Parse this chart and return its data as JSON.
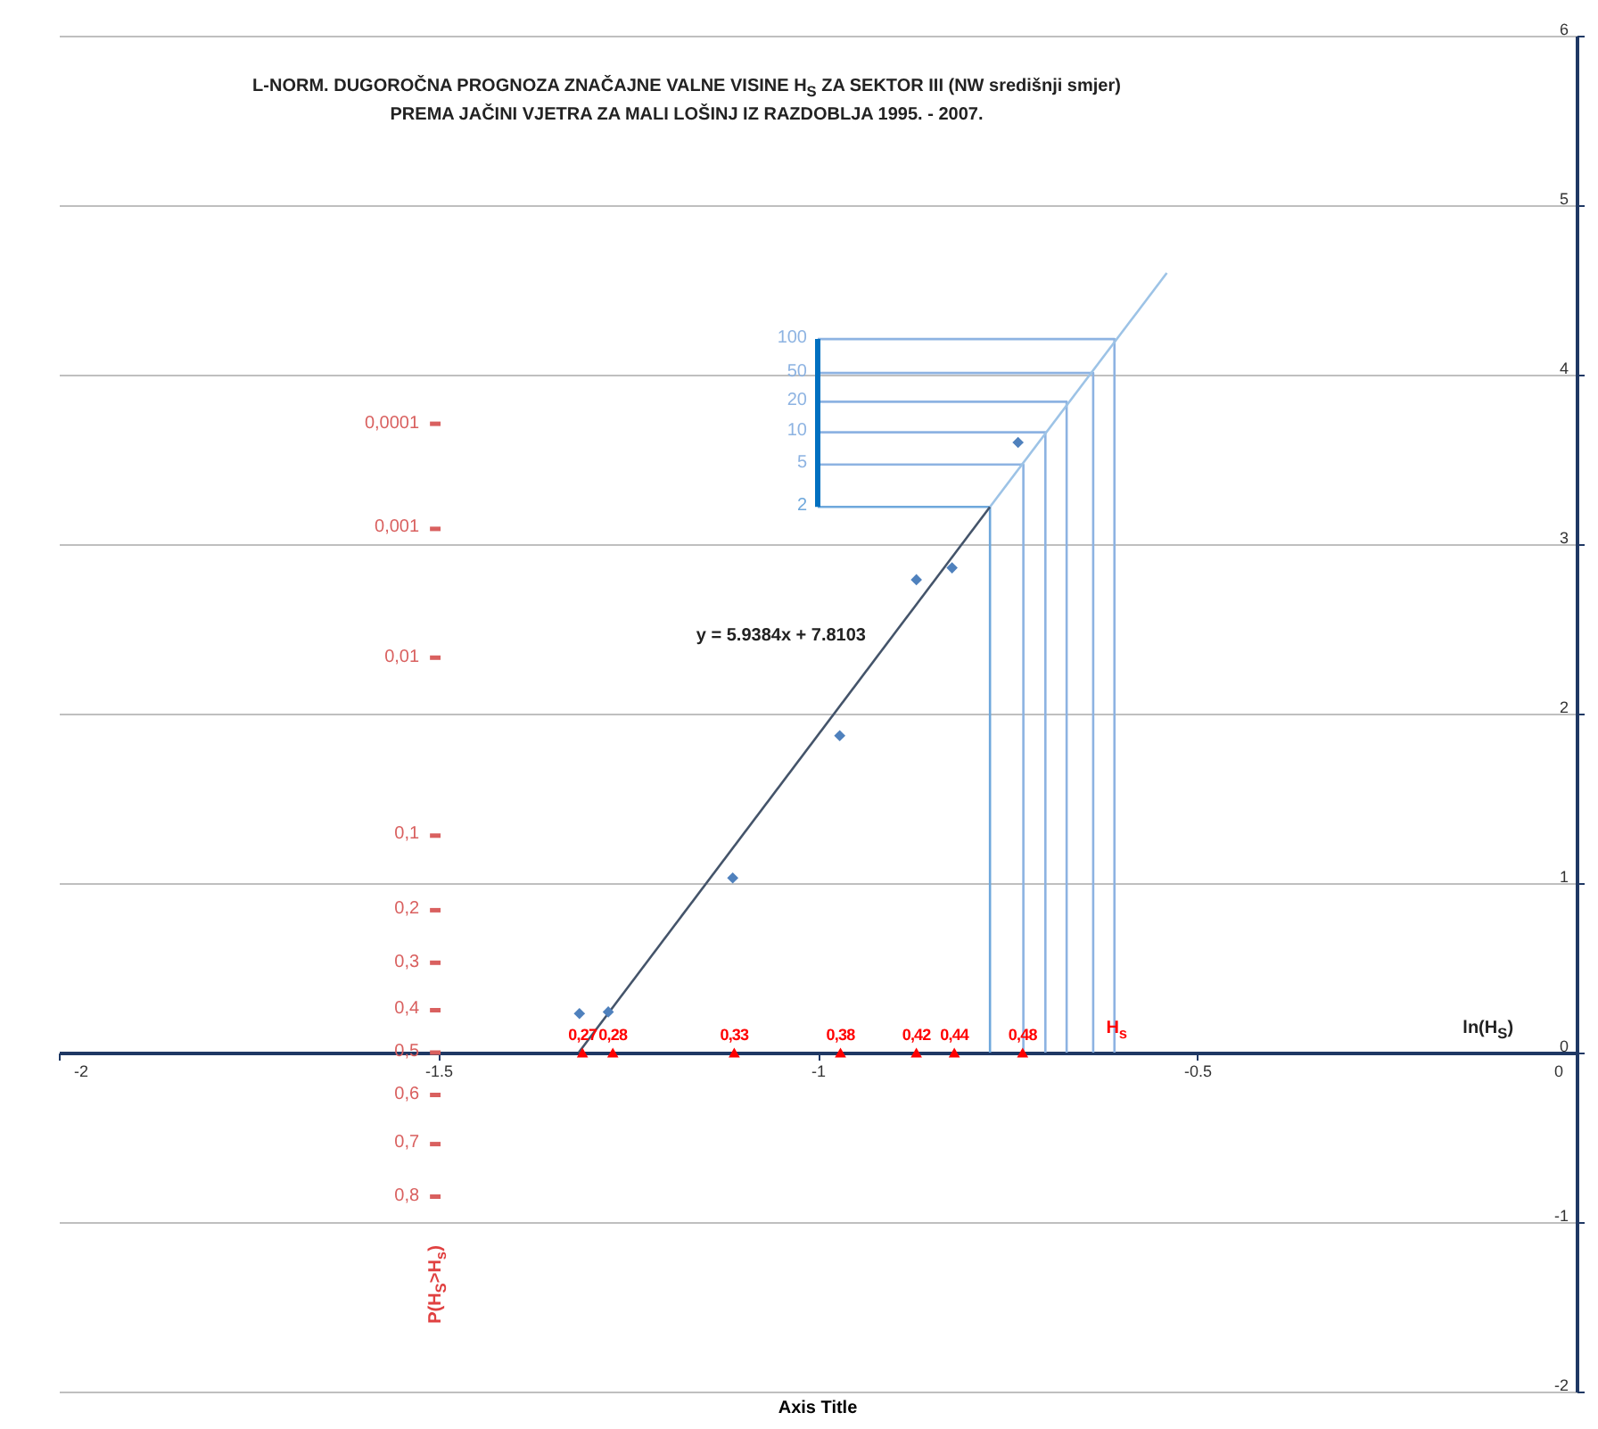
{
  "chart_data": {
    "type": "scatter",
    "title": "L-NORM. DUGOROČNA PROGNOZA ZNAČAJNE VALNE VISINE H$_{S}$ ZA SEKTOR III  (NW središnji smjer)",
    "subtitle": "PREMA JAČINI VJETRA ZA MALI LOŠINJ IZ RAZDOBLJA 1995. - 2007.",
    "xlabel": "Axis Title",
    "xlim": [
      -2,
      0
    ],
    "xticks": [
      -2,
      -1.5,
      -1,
      -0.5,
      0
    ],
    "ylim": [
      -2,
      6
    ],
    "yticks": [
      -2,
      -1,
      0,
      1,
      2,
      3,
      4,
      5,
      6
    ],
    "grid": "y",
    "series": [
      {
        "type": "line",
        "color": "#6fa8dc",
        "x": [
          -1.0,
          -0.773,
          -0.773
        ],
        "values": [
          3.22,
          3.22,
          0
        ]
      },
      {
        "type": "line",
        "color": "#8db3e2",
        "x": [
          -1.0,
          -0.729,
          -0.729
        ],
        "values": [
          3.47,
          3.47,
          0
        ]
      },
      {
        "type": "line",
        "color": "#8db3e2",
        "x": [
          -1.0,
          -0.7,
          -0.7
        ],
        "values": [
          3.66,
          3.66,
          0
        ]
      },
      {
        "type": "line",
        "color": "#8db3e2",
        "x": [
          -1.0,
          -0.672,
          -0.672
        ],
        "values": [
          3.84,
          3.84,
          0
        ]
      },
      {
        "type": "line",
        "color": "#8db3e2",
        "x": [
          -1.0,
          -0.637,
          -0.637
        ],
        "values": [
          4.01,
          4.01,
          0
        ]
      },
      {
        "type": "line",
        "color": "#8db3e2",
        "x": [
          -1.0,
          -0.609,
          -0.609
        ],
        "values": [
          4.21,
          4.21,
          0
        ]
      },
      {
        "type": "line",
        "color": "#44546a",
        "x": [
          -1.315,
          -0.773
        ],
        "values": [
          0,
          3.22
        ]
      },
      {
        "type": "line",
        "color": "#9dc3e6",
        "x": [
          -0.773,
          -0.54
        ],
        "values": [
          3.22,
          4.6
        ]
      },
      {
        "type": "line",
        "color": "#0070c0",
        "x": [
          -1.0,
          -1.0
        ],
        "values": [
          3.22,
          4.21
        ]
      },
      {
        "marker": "diamond",
        "color": "#4f81bd",
        "x": [
          -1.314,
          -1.276,
          -1.112,
          -0.971,
          -0.87,
          -0.823,
          -0.736
        ],
        "values": [
          0.23,
          0.24,
          1.03,
          1.87,
          2.79,
          2.86,
          3.6
        ]
      },
      {
        "marker": "triangle",
        "color": "#ff0000",
        "x": [
          -1.31,
          -1.27,
          -1.11,
          -0.97,
          -0.87,
          -0.82,
          -0.73
        ],
        "values": [
          0,
          0,
          0,
          0,
          0,
          0,
          0
        ]
      },
      {
        "type": "line",
        "color": "#d9605f",
        "x": [
          -1.511,
          -1.497
        ],
        "values": [
          3.71,
          3.71
        ]
      },
      {
        "type": "line",
        "color": "#d9605f",
        "x": [
          -1.511,
          -1.497
        ],
        "values": [
          3.09,
          3.09
        ]
      },
      {
        "type": "line",
        "color": "#d9605f",
        "x": [
          -1.511,
          -1.497
        ],
        "values": [
          2.33,
          2.33
        ]
      },
      {
        "type": "line",
        "color": "#d9605f",
        "x": [
          -1.511,
          -1.497
        ],
        "values": [
          1.28,
          1.28
        ]
      },
      {
        "type": "line",
        "color": "#d9605f",
        "x": [
          -1.511,
          -1.497
        ],
        "values": [
          0.84,
          0.84
        ]
      },
      {
        "type": "line",
        "color": "#d9605f",
        "x": [
          -1.511,
          -1.497
        ],
        "values": [
          0.53,
          0.53
        ]
      },
      {
        "type": "line",
        "color": "#d9605f",
        "x": [
          -1.511,
          -1.497
        ],
        "values": [
          0.25,
          0.25
        ]
      },
      {
        "type": "line",
        "color": "#d9605f",
        "x": [
          -1.511,
          -1.497
        ],
        "values": [
          0.0,
          0.0
        ]
      },
      {
        "type": "line",
        "color": "#d9605f",
        "x": [
          -1.511,
          -1.497
        ],
        "values": [
          -0.25,
          -0.25
        ]
      },
      {
        "type": "line",
        "color": "#d9605f",
        "x": [
          -1.511,
          -1.497
        ],
        "values": [
          -0.54,
          -0.54
        ]
      },
      {
        "type": "line",
        "color": "#d9605f",
        "x": [
          -1.511,
          -1.497
        ],
        "values": [
          -0.85,
          -0.85
        ]
      }
    ],
    "annotations": [
      "y = 5.9384x + 7.8103",
      "ln(H$_{S}$)",
      "H$_{s}$",
      "P(H$_{S}$>H$_{s}$)",
      {
        "text": "2",
        "x": -1.0,
        "y": 3.22
      },
      {
        "text": "5",
        "x": -1.0,
        "y": 3.47
      },
      {
        "text": "10",
        "x": -1.0,
        "y": 3.66
      },
      {
        "text": "20",
        "x": -1.0,
        "y": 3.84
      },
      {
        "text": "50",
        "x": -1.0,
        "y": 4.01
      },
      {
        "text": "100",
        "x": -1.0,
        "y": 4.21
      },
      {
        "text": "0,27",
        "x": -1.31,
        "y": 0
      },
      {
        "text": "0,28",
        "x": -1.27,
        "y": 0
      },
      {
        "text": "0,33",
        "x": -1.11,
        "y": 0
      },
      {
        "text": "0,38",
        "x": -0.97,
        "y": 0
      },
      {
        "text": "0,42",
        "x": -0.87,
        "y": 0
      },
      {
        "text": "0,44",
        "x": -0.82,
        "y": 0
      },
      {
        "text": "0,48",
        "x": -0.73,
        "y": 0
      },
      {
        "text": "0,0001",
        "x": -1.511,
        "y": 3.71
      },
      {
        "text": "0,001",
        "x": -1.511,
        "y": 3.09
      },
      {
        "text": "0,01",
        "x": -1.511,
        "y": 2.33
      },
      {
        "text": "0,1",
        "x": -1.511,
        "y": 1.28
      },
      {
        "text": "0,2",
        "x": -1.511,
        "y": 0.84
      },
      {
        "text": "0,3",
        "x": -1.511,
        "y": 0.53
      },
      {
        "text": "0,4",
        "x": -1.511,
        "y": 0.25
      },
      {
        "text": "0,5",
        "x": -1.511,
        "y": 0.0
      },
      {
        "text": "0,6",
        "x": -1.511,
        "y": -0.25
      },
      {
        "text": "0,7",
        "x": -1.511,
        "y": -0.54
      },
      {
        "text": "0,8",
        "x": -1.511,
        "y": -0.85
      }
    ]
  }
}
